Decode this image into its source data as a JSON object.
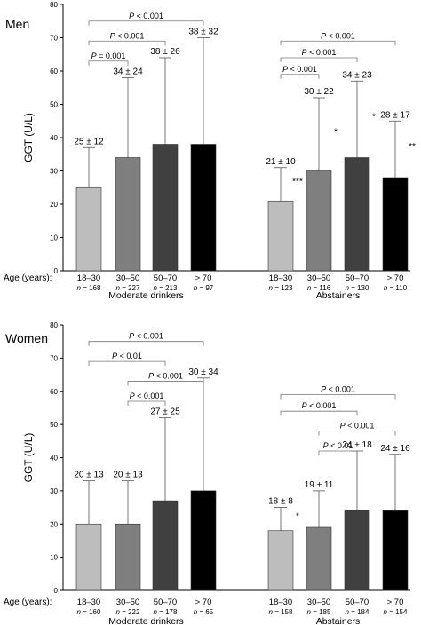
{
  "chart_data": [
    {
      "type": "bar",
      "panel_label": "Men",
      "ylabel": "GGT (U/L)",
      "ylim": [
        0,
        80
      ],
      "yticks": [
        0,
        10,
        20,
        30,
        40,
        50,
        60,
        70,
        80
      ],
      "age_label": "Age (years):",
      "groups": [
        {
          "name": "Moderate drinkers",
          "bars": [
            {
              "age": "18–30",
              "n": "n = 168",
              "value": 25,
              "err_top": 37,
              "label": "25 ± 12",
              "sig": "",
              "color": "#bdbdbd"
            },
            {
              "age": "30–50",
              "n": "n = 227",
              "value": 34,
              "err_top": 58,
              "label": "34 ± 24",
              "sig": "",
              "color": "#7f7f7f"
            },
            {
              "age": "50–70",
              "n": "n = 213",
              "value": 38,
              "err_top": 64,
              "label": "38 ± 26",
              "sig": "",
              "color": "#404040"
            },
            {
              "age": "> 70",
              "n": "n = 97",
              "value": 38,
              "err_top": 70,
              "label": "38 ± 32",
              "sig": "",
              "color": "#000000"
            }
          ],
          "brackets": [
            {
              "from": 0,
              "to": 1,
              "level": 63,
              "label": "P = 0.001"
            },
            {
              "from": 0,
              "to": 2,
              "level": 69,
              "label": "P < 0.001"
            },
            {
              "from": 0,
              "to": 3,
              "level": 75,
              "label": "P < 0.001"
            }
          ]
        },
        {
          "name": "Abstainers",
          "bars": [
            {
              "age": "18–30",
              "n": "n = 123",
              "value": 21,
              "err_top": 31,
              "label": "21 ± 10",
              "sig": "***",
              "color": "#bdbdbd"
            },
            {
              "age": "30–50",
              "n": "n = 116",
              "value": 30,
              "err_top": 52,
              "label": "30 ± 22",
              "sig": "*",
              "color": "#7f7f7f"
            },
            {
              "age": "50–70",
              "n": "n = 130",
              "value": 34,
              "err_top": 57,
              "label": "34 ± 23",
              "sig": "*",
              "color": "#404040"
            },
            {
              "age": "> 70",
              "n": "n = 110",
              "value": 28,
              "err_top": 45,
              "label": "28 ± 17",
              "sig": "**",
              "color": "#000000"
            }
          ],
          "brackets": [
            {
              "from": 0,
              "to": 1,
              "level": 59,
              "label": "P < 0.001"
            },
            {
              "from": 0,
              "to": 2,
              "level": 64,
              "label": "P < 0.001"
            },
            {
              "from": 0,
              "to": 3,
              "level": 69,
              "label": "P < 0.001"
            }
          ]
        }
      ]
    },
    {
      "type": "bar",
      "panel_label": "Women",
      "ylabel": "GGT (U/L)",
      "ylim": [
        0,
        80
      ],
      "yticks": [
        0,
        10,
        20,
        30,
        40,
        50,
        60,
        70,
        80
      ],
      "age_label": "Age (years):",
      "groups": [
        {
          "name": "Moderate drinkers",
          "bars": [
            {
              "age": "18–30",
              "n": "n = 160",
              "value": 20,
              "err_top": 33,
              "label": "20 ± 13",
              "sig": "",
              "color": "#bdbdbd"
            },
            {
              "age": "30–50",
              "n": "n = 222",
              "value": 20,
              "err_top": 33,
              "label": "20 ± 13",
              "sig": "",
              "color": "#7f7f7f"
            },
            {
              "age": "50–70",
              "n": "n = 178",
              "value": 27,
              "err_top": 52,
              "label": "27 ± 25",
              "sig": "",
              "color": "#404040"
            },
            {
              "age": "> 70",
              "n": "n = 65",
              "value": 30,
              "err_top": 64,
              "label": "30 ± 34",
              "sig": "",
              "color": "#000000"
            }
          ],
          "brackets": [
            {
              "from": 0,
              "to": 3,
              "level": 75,
              "label": "P < 0.001"
            },
            {
              "from": 0,
              "to": 2,
              "level": 69,
              "label": "P < 0.01"
            },
            {
              "from": 1,
              "to": 3,
              "level": 63,
              "label": "P < 0.001"
            },
            {
              "from": 1,
              "to": 2,
              "level": 57,
              "label": "P < 0.001"
            }
          ]
        },
        {
          "name": "Abstainers",
          "bars": [
            {
              "age": "18–30",
              "n": "n = 158",
              "value": 18,
              "err_top": 25,
              "label": "18 ± 8",
              "sig": "*",
              "color": "#bdbdbd"
            },
            {
              "age": "30–50",
              "n": "n = 185",
              "value": 19,
              "err_top": 30,
              "label": "19 ± 11",
              "sig": "",
              "color": "#7f7f7f"
            },
            {
              "age": "50–70",
              "n": "n = 184",
              "value": 24,
              "err_top": 42,
              "label": "24 ± 18",
              "sig": "",
              "color": "#404040"
            },
            {
              "age": "> 70",
              "n": "n = 154",
              "value": 24,
              "err_top": 41,
              "label": "24 ± 16",
              "sig": "",
              "color": "#000000"
            }
          ],
          "brackets": [
            {
              "from": 0,
              "to": 3,
              "level": 59,
              "label": "P < 0.001"
            },
            {
              "from": 0,
              "to": 2,
              "level": 54,
              "label": "P < 0.001"
            },
            {
              "from": 1,
              "to": 3,
              "level": 48,
              "label": "P < 0.001"
            },
            {
              "from": 1,
              "to": 2,
              "level": 42,
              "label": "P < 0.01"
            }
          ]
        }
      ]
    }
  ]
}
